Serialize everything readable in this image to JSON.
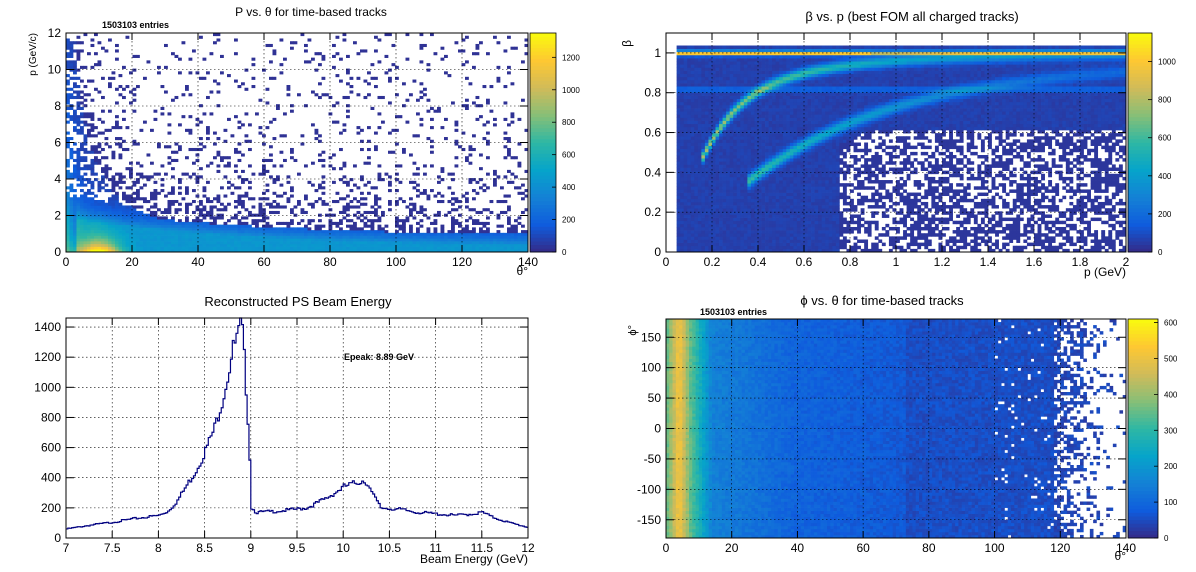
{
  "colors": {
    "bg": "#ffffff",
    "frame": "#000000",
    "grid": "#000000",
    "hist_line": "#000080",
    "palette": [
      "#352a87",
      "#0f5cdd",
      "#1481d6",
      "#06a4ca",
      "#2eb7a4",
      "#87bf77",
      "#d1bb59",
      "#fec832",
      "#f9fb0e"
    ]
  },
  "chart_data": [
    {
      "id": "p_vs_theta",
      "type": "heatmap",
      "title": "P vs. θ for time-based tracks",
      "xlabel": "θ°",
      "ylabel": "p (GeV/c)",
      "stats": "1503103 entries",
      "xlim": [
        0,
        140
      ],
      "ylim": [
        0,
        12
      ],
      "x_ticks": [
        0,
        20,
        40,
        60,
        80,
        100,
        120,
        140
      ],
      "y_ticks": [
        0,
        2,
        4,
        6,
        8,
        10,
        12
      ],
      "z_ticks": [
        0,
        200,
        400,
        600,
        800,
        1000,
        1200
      ],
      "zlim": [
        0,
        1350
      ],
      "grid": true
    },
    {
      "id": "beta_vs_p",
      "type": "heatmap",
      "title": "β vs. p (best FOM all charged tracks)",
      "xlabel": "p (GeV)",
      "ylabel": "β",
      "xlim": [
        0,
        2
      ],
      "ylim": [
        0,
        1.1
      ],
      "x_ticks": [
        0,
        0.2,
        0.4,
        0.6,
        0.8,
        1,
        1.2,
        1.4,
        1.6,
        1.8,
        2
      ],
      "y_ticks": [
        0,
        0.2,
        0.4,
        0.6,
        0.8,
        1
      ],
      "z_ticks": [
        0,
        200,
        400,
        600,
        800,
        1000
      ],
      "zlim": [
        0,
        1150
      ],
      "grid": true
    },
    {
      "id": "beam_energy",
      "type": "line",
      "title": "Reconstructed PS Beam Energy",
      "xlabel": "Beam Energy (GeV)",
      "ylabel": "",
      "annotation": "Epeak: 8.89 GeV",
      "xlim": [
        7,
        12
      ],
      "ylim": [
        0,
        1460
      ],
      "x_ticks": [
        7,
        7.5,
        8,
        8.5,
        9,
        9.5,
        10,
        10.5,
        11,
        11.5,
        12
      ],
      "y_ticks": [
        0,
        200,
        400,
        600,
        800,
        1000,
        1200,
        1400
      ],
      "grid": true,
      "series": [
        {
          "x": [
            7.0,
            7.25,
            7.5,
            7.75,
            8.0,
            8.1,
            8.2,
            8.3,
            8.4,
            8.5,
            8.6,
            8.7,
            8.8,
            8.86,
            8.89,
            8.93,
            8.97,
            9.0,
            9.05,
            9.2,
            9.4,
            9.6,
            9.8,
            9.9,
            10.0,
            10.1,
            10.2,
            10.25,
            10.3,
            10.4,
            10.6,
            10.8,
            11.0,
            11.2,
            11.4,
            11.5,
            11.6,
            11.8,
            12.0
          ],
          "y": [
            60,
            85,
            105,
            130,
            150,
            180,
            250,
            350,
            450,
            580,
            730,
            960,
            1250,
            1350,
            1440,
            1100,
            700,
            200,
            170,
            175,
            185,
            200,
            260,
            300,
            340,
            360,
            380,
            370,
            300,
            200,
            190,
            170,
            160,
            150,
            160,
            170,
            140,
            100,
            70
          ]
        }
      ]
    },
    {
      "id": "phi_vs_theta",
      "type": "heatmap",
      "title": "ϕ vs. θ for time-based tracks",
      "xlabel": "θ°",
      "ylabel": "ϕ°",
      "stats": "1503103 entries",
      "xlim": [
        0,
        140
      ],
      "ylim": [
        -180,
        180
      ],
      "x_ticks": [
        0,
        20,
        40,
        60,
        80,
        100,
        120,
        140
      ],
      "y_ticks": [
        -150,
        -100,
        -50,
        0,
        50,
        100,
        150
      ],
      "z_ticks": [
        0,
        100,
        200,
        300,
        400,
        500,
        600
      ],
      "zlim": [
        0,
        610
      ],
      "grid": true
    }
  ]
}
